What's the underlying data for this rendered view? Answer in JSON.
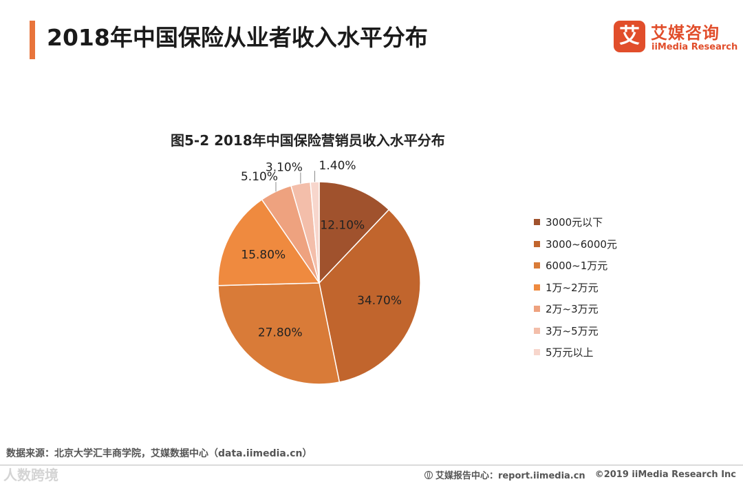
{
  "header": {
    "title": "2018年中国保险从业者收入水平分布"
  },
  "logo": {
    "mark": "艾",
    "name_cn": "艾媒咨询",
    "name_en": "iiMedia Research"
  },
  "chart_data": {
    "type": "pie",
    "title": "图5-2 2018年中国保险营销员收入水平分布",
    "categories": [
      "3000元以下",
      "3000~6000元",
      "6000~1万元",
      "1万~2万元",
      "2万~3万元",
      "3万~5万元",
      "5万元以上"
    ],
    "values": [
      12.1,
      34.7,
      27.8,
      15.8,
      5.1,
      3.1,
      1.4
    ],
    "value_labels": [
      "12.10%",
      "34.70%",
      "27.80%",
      "15.80%",
      "5.10%",
      "3.10%",
      "1.40%"
    ],
    "colors": [
      "#a0522d",
      "#c1652d",
      "#d97b38",
      "#ef8a3f",
      "#eea27f",
      "#f3beaa",
      "#f7d6cc"
    ],
    "start_angle_deg": 0,
    "direction": "clockwise",
    "legend_position": "right"
  },
  "footer": {
    "source": "数据来源：北京大学汇丰商学院，艾媒数据中心（data.iimedia.cn）",
    "report_site": "艾媒报告中心：report.iimedia.cn",
    "copyright": "©2019  iiMedia Research  Inc",
    "watermark": "人数跨境"
  }
}
